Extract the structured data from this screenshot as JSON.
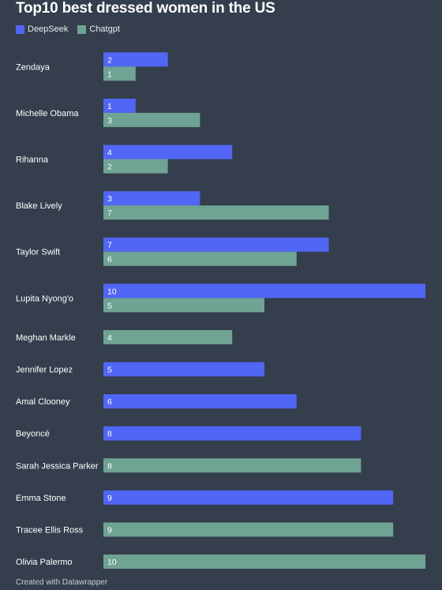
{
  "chart_data": {
    "type": "bar",
    "orientation": "horizontal",
    "title": "Top10 best dressed women in the US",
    "categories": [
      "Zendaya",
      "Michelle Obama",
      "Rihanna",
      "Blake Lively",
      "Taylor Swift",
      "Lupita Nyong'o",
      "Meghan Markle",
      "Jennifer Lopez",
      "Amal Clooney",
      "Beyoncé",
      "Sarah Jessica Parker",
      "Emma Stone",
      "Tracee Ellis Ross",
      "Olivia Palermo"
    ],
    "series": [
      {
        "name": "DeepSeek",
        "color": "#5166f5",
        "values": [
          2,
          1,
          4,
          3,
          7,
          10,
          null,
          5,
          6,
          8,
          null,
          9,
          null,
          null
        ]
      },
      {
        "name": "Chatgpt",
        "color": "#6fa393",
        "values": [
          1,
          3,
          2,
          7,
          6,
          5,
          4,
          null,
          null,
          null,
          8,
          null,
          9,
          10
        ]
      }
    ],
    "xlim": [
      0,
      10
    ],
    "legend_position": "top-left",
    "grid": false
  },
  "footer": "Created with Datawrapper"
}
